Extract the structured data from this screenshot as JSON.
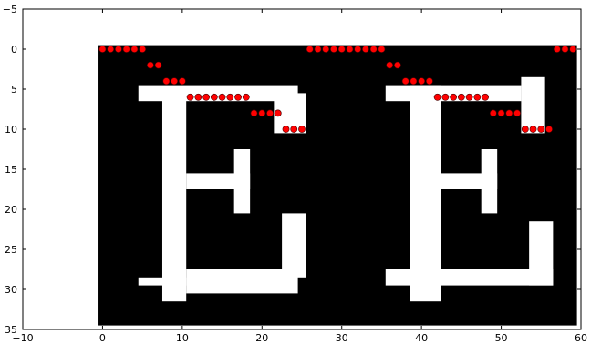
{
  "chart_data": {
    "type": "scatter",
    "xlim": [
      -10,
      60
    ],
    "ylim": [
      35,
      -5
    ],
    "xticks": [
      {
        "value": -10,
        "label": "−10"
      },
      0,
      10,
      20,
      30,
      40,
      50,
      60
    ],
    "yticks": [
      {
        "value": -5,
        "label": "−5"
      },
      0,
      5,
      10,
      15,
      20,
      25,
      30,
      35
    ],
    "series": [
      {
        "color": "#ff0000",
        "x": [
          0,
          1,
          2,
          3,
          4,
          5,
          26,
          27,
          28,
          29,
          30,
          31,
          32,
          33,
          34,
          35,
          57,
          58,
          59,
          6,
          7,
          36,
          37,
          8,
          9,
          10,
          38,
          39,
          40,
          41,
          11,
          12,
          13,
          14,
          15,
          16,
          17,
          18,
          42,
          43,
          44,
          45,
          46,
          47,
          48,
          19,
          20,
          21,
          22,
          49,
          50,
          51,
          52,
          23,
          24,
          25,
          53,
          54,
          55,
          56
        ],
        "values": [
          0,
          0,
          0,
          0,
          0,
          0,
          0,
          0,
          0,
          0,
          0,
          0,
          0,
          0,
          0,
          0,
          0,
          0,
          0,
          2,
          2,
          2,
          2,
          4,
          4,
          4,
          4,
          4,
          4,
          4,
          6,
          6,
          6,
          6,
          6,
          6,
          6,
          6,
          6,
          6,
          6,
          6,
          6,
          6,
          6,
          8,
          8,
          8,
          8,
          8,
          8,
          8,
          8,
          10,
          10,
          10,
          10,
          10,
          10,
          10
        ]
      }
    ]
  }
}
